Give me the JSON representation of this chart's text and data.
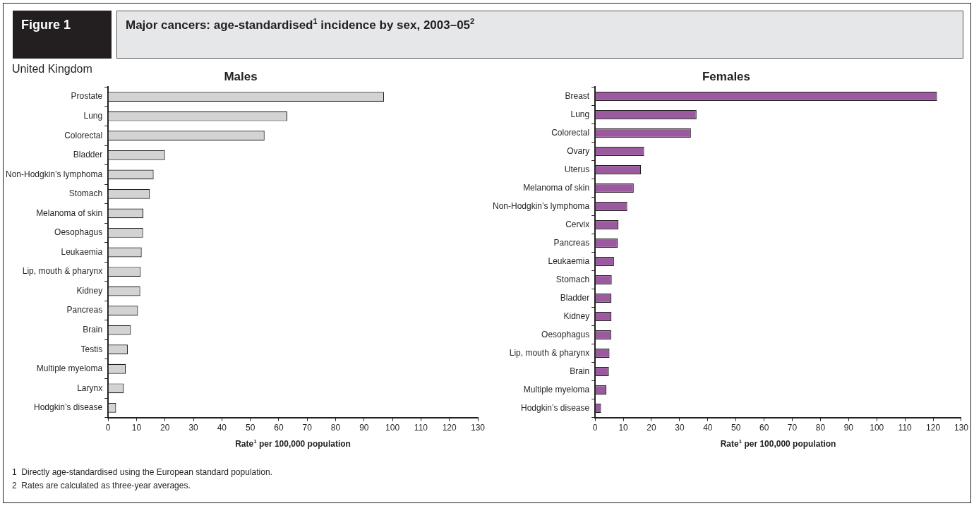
{
  "chart_data": [
    {
      "type": "bar",
      "orientation": "horizontal",
      "title": "Males",
      "xlabel": "Rate$^{1}$ per 100,000 population",
      "categories": [
        "Prostate",
        "Lung",
        "Colorectal",
        "Bladder",
        "Non-Hodgkin’s lymphoma",
        "Stomach",
        "Melanoma of skin",
        "Oesophagus",
        "Leukaemia",
        "Lip, mouth & pharynx",
        "Kidney",
        "Pancreas",
        "Brain",
        "Testis",
        "Multiple myeloma",
        "Larynx",
        "Hodgkin’s disease"
      ],
      "series": [
        {
          "color": "#d1d3d4",
          "values": [
            97,
            63,
            55,
            20,
            16,
            14.7,
            12.4,
            12.3,
            11.8,
            11.5,
            11.3,
            10.5,
            8.0,
            6.9,
            6.2,
            5.5,
            2.8
          ]
        }
      ],
      "xlim": [
        0,
        130
      ],
      "xticks": [
        0,
        10,
        20,
        30,
        40,
        50,
        60,
        70,
        80,
        90,
        100,
        110,
        120,
        130
      ],
      "grid": false,
      "legend": false,
      "annotations": [
        "Figure 1",
        "Major cancers: age-standardised$^{1}$ incidence by sex, 2003–05$^{2}$",
        "United Kingdom",
        "1  Directly age-standardised using the European standard population.",
        "2  Rates are calculated as three-year averages."
      ]
    },
    {
      "type": "bar",
      "orientation": "horizontal",
      "title": "Females",
      "xlabel": "Rate$^{1}$ per 100,000 population",
      "categories": [
        "Breast",
        "Lung",
        "Colorectal",
        "Ovary",
        "Uterus",
        "Melanoma of skin",
        "Non-Hodgkin’s lymphoma",
        "Cervix",
        "Pancreas",
        "Leukaemia",
        "Stomach",
        "Bladder",
        "Kidney",
        "Oesophagus",
        "Lip, mouth & pharynx",
        "Brain",
        "Multiple myeloma",
        "Hodgkin’s disease"
      ],
      "series": [
        {
          "color": "#9b59a0",
          "values": [
            121.4,
            36,
            34,
            17.4,
            16.3,
            13.7,
            11.4,
            8.3,
            8.0,
            6.7,
            5.9,
            5.8,
            5.8,
            5.7,
            5.1,
            4.9,
            4.0,
            2.1
          ]
        }
      ],
      "xlim": [
        0,
        130
      ],
      "xticks": [
        0,
        10,
        20,
        30,
        40,
        50,
        60,
        70,
        80,
        90,
        100,
        110,
        120,
        130
      ],
      "grid": false,
      "legend": false
    }
  ]
}
